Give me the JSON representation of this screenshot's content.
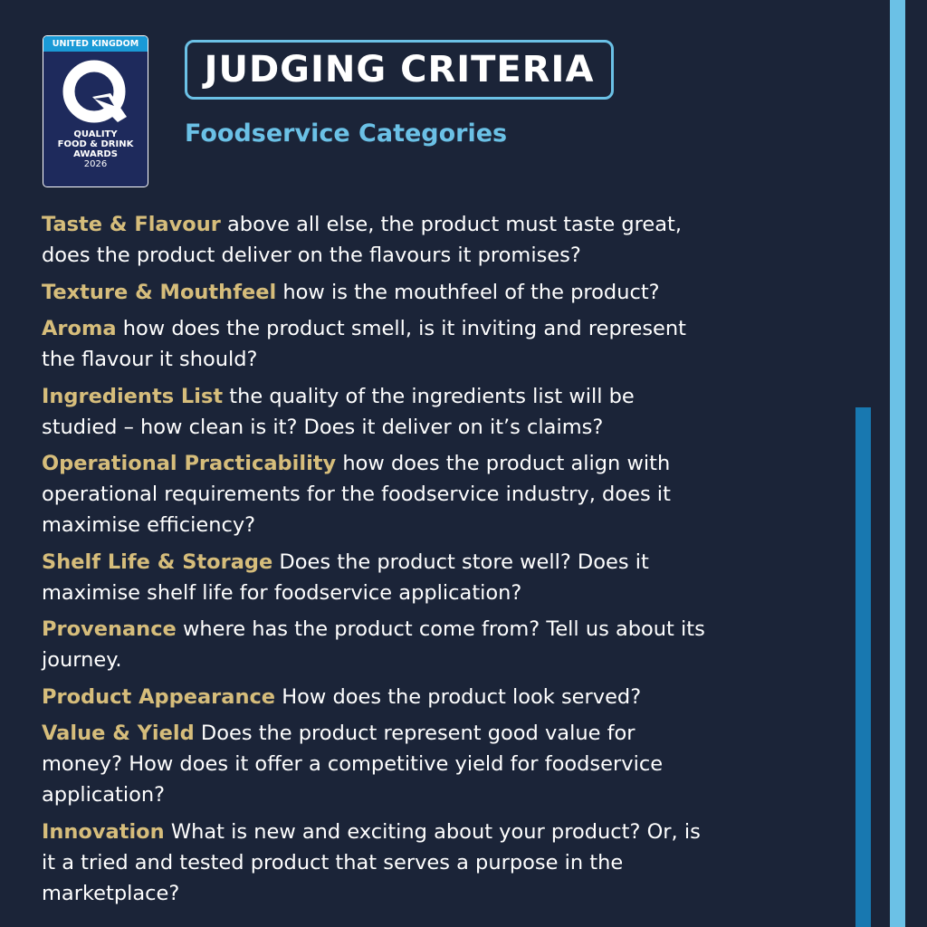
{
  "logo": {
    "country": "UNITED KINGDOM",
    "line1": "QUALITY",
    "line2": "FOOD & DRINK",
    "line3": "AWARDS",
    "year": "2026"
  },
  "title": "JUDGING CRITERIA",
  "subtitle": "Foodservice Categories",
  "colors": {
    "background": "#1b2438",
    "accent_light": "#6bc1e6",
    "accent_mid": "#1878b0",
    "heading_gold": "#d6bd7b"
  },
  "criteria": [
    {
      "heading": "Taste & Flavour",
      "lines": [
        " above all else, the product must taste great,",
        "does the product deliver on the flavours it promises?"
      ]
    },
    {
      "heading": "Texture & Mouthfeel",
      "lines": [
        " how is the mouthfeel of the product?"
      ]
    },
    {
      "heading": "Aroma",
      "lines": [
        " how does the product smell, is it inviting and represent",
        "the flavour it should?"
      ]
    },
    {
      "heading": "Ingredients List",
      "lines": [
        " the quality of the ingredients list will be",
        "studied – how clean is it? Does it deliver on it’s claims?"
      ]
    },
    {
      "heading": "Operational Practicability",
      "lines": [
        " how does the product align with",
        "operational requirements for the foodservice industry, does it",
        "maximise efficiency?"
      ]
    },
    {
      "heading": "Shelf Life & Storage",
      "lines": [
        " Does the product store well? Does it",
        "maximise shelf life for foodservice application?"
      ]
    },
    {
      "heading": "Provenance",
      "lines": [
        " where has the product come from? Tell us about its",
        "journey."
      ]
    },
    {
      "heading": "Product Appearance",
      "lines": [
        " How does the product look served?"
      ]
    },
    {
      "heading": "Value & Yield",
      "lines": [
        " Does the product represent good value for",
        "money? How does it offer a competitive yield for foodservice",
        "application?"
      ]
    },
    {
      "heading": "Innovation",
      "lines": [
        " What is new and exciting about your product? Or, is",
        "it a tried and tested product that serves a purpose in the",
        "marketplace?"
      ]
    }
  ]
}
